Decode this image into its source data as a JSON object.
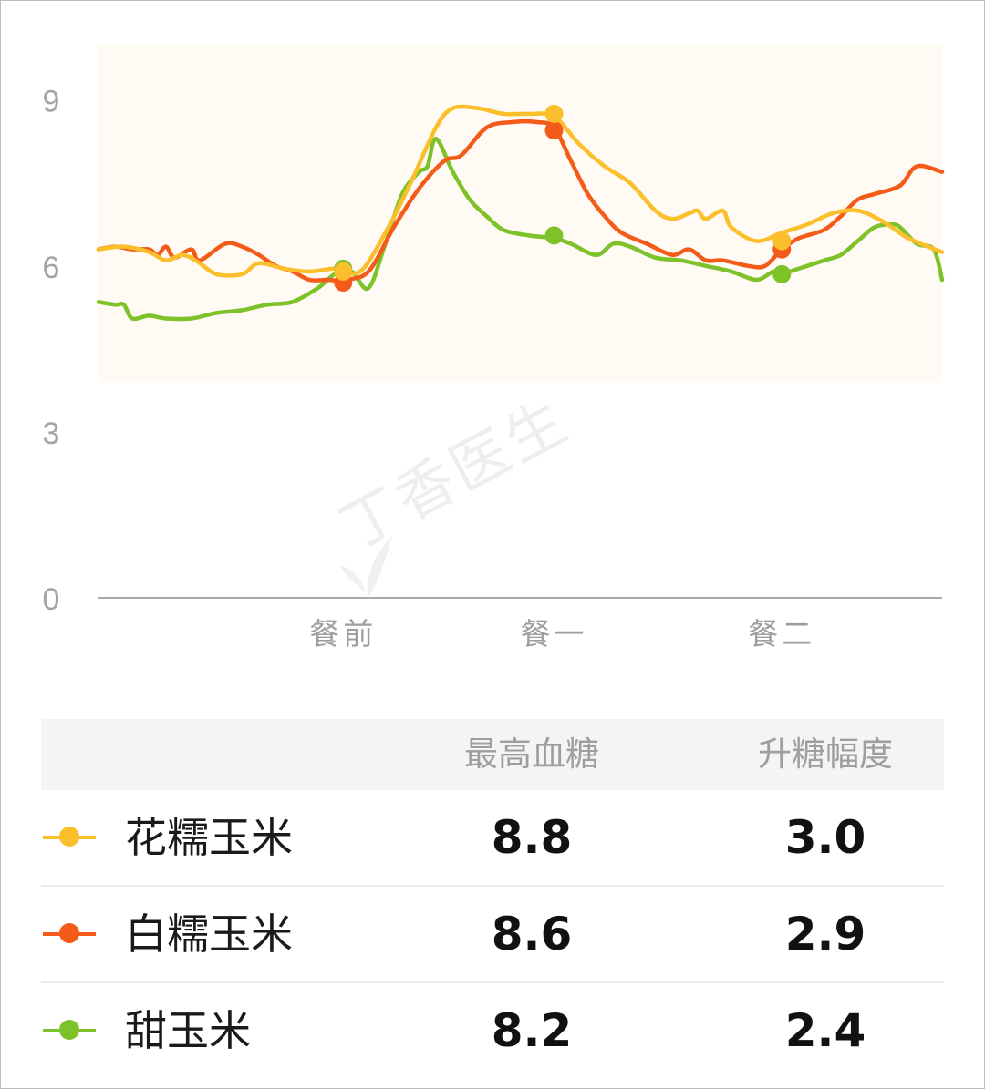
{
  "chart_data": {
    "type": "line",
    "y_ticks": [
      "0",
      "3",
      "6",
      "9"
    ],
    "ylim": [
      0,
      10
    ],
    "x_labels": [
      "餐前",
      "餐一",
      "餐二"
    ],
    "band": [
      3.9,
      10
    ],
    "series": [
      {
        "name": "花糯玉米",
        "color": "#fbbf2c",
        "points": [
          [
            0,
            6.3
          ],
          [
            3,
            6.35
          ],
          [
            6,
            6.25
          ],
          [
            8,
            6.1
          ],
          [
            10,
            6.2
          ],
          [
            12,
            6.05
          ],
          [
            14,
            5.85
          ],
          [
            17,
            5.85
          ],
          [
            19,
            6.05
          ],
          [
            22,
            5.95
          ],
          [
            25,
            5.9
          ],
          [
            28,
            5.95
          ],
          [
            31,
            5.9
          ],
          [
            34,
            6.6
          ],
          [
            37,
            7.5
          ],
          [
            40,
            8.5
          ],
          [
            42,
            8.85
          ],
          [
            45,
            8.85
          ],
          [
            48,
            8.75
          ],
          [
            51,
            8.75
          ],
          [
            54,
            8.7
          ],
          [
            57,
            8.2
          ],
          [
            60,
            7.8
          ],
          [
            63,
            7.5
          ],
          [
            66,
            7.0
          ],
          [
            68,
            6.85
          ],
          [
            70,
            6.95
          ],
          [
            71,
            7.0
          ],
          [
            72,
            6.85
          ],
          [
            74,
            7.0
          ],
          [
            75,
            6.7
          ],
          [
            78,
            6.45
          ],
          [
            81,
            6.6
          ],
          [
            84,
            6.75
          ],
          [
            87,
            6.95
          ],
          [
            90,
            7.0
          ],
          [
            93,
            6.8
          ],
          [
            96,
            6.5
          ],
          [
            100,
            6.25
          ]
        ],
        "markers": [
          [
            29,
            5.9
          ],
          [
            54,
            8.75
          ],
          [
            81,
            6.45
          ]
        ]
      },
      {
        "name": "白糯玉米",
        "color": "#f45b18",
        "points": [
          [
            0,
            6.3
          ],
          [
            2,
            6.35
          ],
          [
            4,
            6.3
          ],
          [
            6,
            6.3
          ],
          [
            7,
            6.2
          ],
          [
            8,
            6.35
          ],
          [
            9,
            6.15
          ],
          [
            11,
            6.3
          ],
          [
            12,
            6.1
          ],
          [
            15,
            6.4
          ],
          [
            17,
            6.35
          ],
          [
            19,
            6.2
          ],
          [
            21,
            6.0
          ],
          [
            23,
            5.9
          ],
          [
            25,
            5.75
          ],
          [
            27,
            5.75
          ],
          [
            29,
            5.75
          ],
          [
            32,
            5.9
          ],
          [
            35,
            6.7
          ],
          [
            38,
            7.4
          ],
          [
            41,
            7.9
          ],
          [
            43,
            8.0
          ],
          [
            46,
            8.5
          ],
          [
            49,
            8.6
          ],
          [
            52,
            8.6
          ],
          [
            54,
            8.5
          ],
          [
            56,
            7.9
          ],
          [
            58,
            7.3
          ],
          [
            60,
            6.9
          ],
          [
            62,
            6.6
          ],
          [
            65,
            6.4
          ],
          [
            68,
            6.2
          ],
          [
            70,
            6.3
          ],
          [
            72,
            6.1
          ],
          [
            74,
            6.1
          ],
          [
            77,
            6.0
          ],
          [
            79,
            6.0
          ],
          [
            81,
            6.3
          ],
          [
            83,
            6.5
          ],
          [
            86,
            6.65
          ],
          [
            88,
            6.9
          ],
          [
            90,
            7.2
          ],
          [
            92,
            7.3
          ],
          [
            95,
            7.45
          ],
          [
            97,
            7.8
          ],
          [
            100,
            7.7
          ]
        ],
        "markers": [
          [
            29,
            5.7
          ],
          [
            54,
            8.45
          ],
          [
            81,
            6.3
          ]
        ]
      },
      {
        "name": "甜玉米",
        "color": "#7ec22a",
        "points": [
          [
            0,
            5.35
          ],
          [
            2,
            5.3
          ],
          [
            3,
            5.3
          ],
          [
            4,
            5.05
          ],
          [
            6,
            5.1
          ],
          [
            8,
            5.05
          ],
          [
            11,
            5.05
          ],
          [
            14,
            5.15
          ],
          [
            17,
            5.2
          ],
          [
            20,
            5.3
          ],
          [
            23,
            5.35
          ],
          [
            26,
            5.6
          ],
          [
            28,
            5.85
          ],
          [
            30,
            5.9
          ],
          [
            32,
            5.6
          ],
          [
            34,
            6.4
          ],
          [
            36,
            7.3
          ],
          [
            38,
            7.7
          ],
          [
            39,
            7.8
          ],
          [
            40,
            8.3
          ],
          [
            42,
            7.7
          ],
          [
            44,
            7.2
          ],
          [
            46,
            6.9
          ],
          [
            48,
            6.65
          ],
          [
            51,
            6.55
          ],
          [
            54,
            6.5
          ],
          [
            56,
            6.4
          ],
          [
            59,
            6.2
          ],
          [
            61,
            6.4
          ],
          [
            63,
            6.35
          ],
          [
            66,
            6.15
          ],
          [
            69,
            6.1
          ],
          [
            72,
            6.0
          ],
          [
            75,
            5.9
          ],
          [
            78,
            5.75
          ],
          [
            80,
            5.9
          ],
          [
            81,
            5.85
          ],
          [
            82,
            5.9
          ],
          [
            84,
            6.0
          ],
          [
            86,
            6.1
          ],
          [
            88,
            6.2
          ],
          [
            90,
            6.45
          ],
          [
            92,
            6.7
          ],
          [
            94,
            6.75
          ],
          [
            95,
            6.7
          ],
          [
            97,
            6.4
          ],
          [
            99,
            6.3
          ],
          [
            100,
            5.75
          ]
        ],
        "markers": [
          [
            29,
            5.95
          ],
          [
            54,
            6.55
          ],
          [
            81,
            5.85
          ]
        ]
      }
    ]
  },
  "watermark": "丁香医生",
  "table": {
    "headers": [
      "最高血糖",
      "升糖幅度"
    ],
    "rows": [
      {
        "name": "花糯玉米",
        "max": "8.8",
        "rise": "3.0",
        "color": "#fbbf2c"
      },
      {
        "name": "白糯玉米",
        "max": "8.6",
        "rise": "2.9",
        "color": "#f45b18"
      },
      {
        "name": "甜玉米",
        "max": "8.2",
        "rise": "2.4",
        "color": "#7ec22a"
      }
    ]
  }
}
